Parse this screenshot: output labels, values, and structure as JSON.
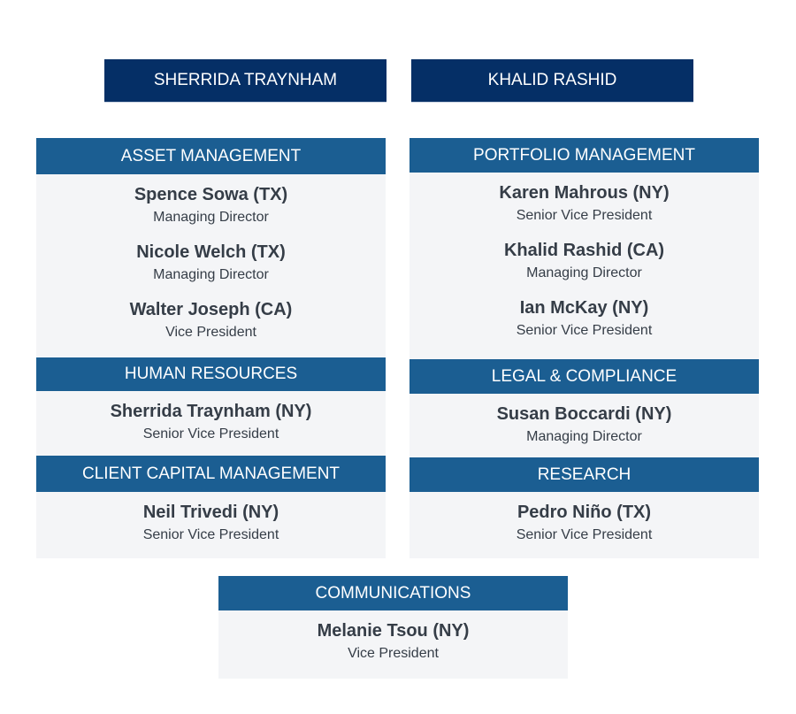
{
  "leaders": [
    "SHERRIDA TRAYNHAM",
    "KHALID RASHID"
  ],
  "sections": [
    {
      "title": "ASSET MANAGEMENT",
      "people": [
        {
          "name": "Spence Sowa (TX)",
          "role": "Managing Director"
        },
        {
          "name": "Nicole Welch (TX)",
          "role": "Managing Director"
        },
        {
          "name": "Walter Joseph (CA)",
          "role": "Vice President"
        }
      ]
    },
    {
      "title": "HUMAN RESOURCES",
      "people": [
        {
          "name": "Sherrida Traynham (NY)",
          "role": "Senior Vice President"
        }
      ]
    },
    {
      "title": "CLIENT CAPITAL MANAGEMENT",
      "people": [
        {
          "name": "Neil Trivedi (NY)",
          "role": "Senior Vice President"
        }
      ]
    },
    {
      "title": "PORTFOLIO MANAGEMENT",
      "people": [
        {
          "name": "Karen Mahrous (NY)",
          "role": "Senior Vice President"
        },
        {
          "name": "Khalid Rashid (CA)",
          "role": "Managing Director"
        },
        {
          "name": "Ian McKay (NY)",
          "role": "Senior Vice President"
        }
      ]
    },
    {
      "title": "LEGAL & COMPLIANCE",
      "people": [
        {
          "name": "Susan Boccardi (NY)",
          "role": "Managing Director"
        }
      ]
    },
    {
      "title": "RESEARCH",
      "people": [
        {
          "name": "Pedro Niño (TX)",
          "role": "Senior Vice President"
        }
      ]
    },
    {
      "title": "COMMUNICATIONS",
      "people": [
        {
          "name": "Melanie Tsou (NY)",
          "role": "Vice President"
        }
      ]
    }
  ],
  "colors": {
    "leader": "#052f66",
    "header": "#1b5e92",
    "body": "#f4f5f7",
    "text": "#353d47"
  }
}
